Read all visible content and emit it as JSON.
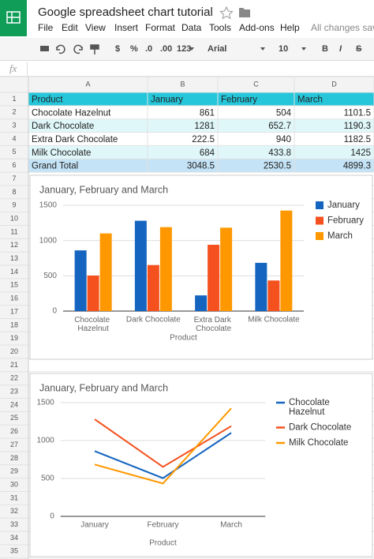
{
  "app": {
    "title": "Google spreadsheet chart tutorial",
    "menu": [
      "File",
      "Edit",
      "View",
      "Insert",
      "Format",
      "Data",
      "Tools",
      "Add-ons",
      "Help"
    ],
    "status": "All changes save",
    "toolbar": [
      "$",
      "%",
      ".0",
      ".00",
      "123",
      "Arial",
      "10",
      "B",
      "I",
      "S"
    ],
    "formula_label": "fx"
  },
  "sheet": {
    "columns": [
      "A",
      "B",
      "C",
      "D"
    ],
    "row_numbers": [
      1,
      2,
      3,
      4,
      5,
      6,
      7,
      8,
      9,
      10,
      11,
      12,
      13,
      14,
      15,
      16,
      17,
      18,
      19,
      20,
      21,
      22,
      23,
      24,
      25,
      26,
      27,
      28,
      29,
      30,
      31,
      32,
      33,
      34,
      35
    ],
    "cells": [
      [
        "Product",
        "January",
        "February",
        "March"
      ],
      [
        "Chocolate Hazelnut",
        861,
        504,
        1101.5
      ],
      [
        "Dark Chocolate",
        1281,
        652.7,
        1190.3
      ],
      [
        "Extra Dark Chocolate",
        222.5,
        940,
        1182.5
      ],
      [
        "Milk Chocolate",
        684,
        433.8,
        1425
      ],
      [
        "Grand Total",
        3048.5,
        2530.5,
        4899.3
      ]
    ]
  },
  "chart_data": [
    {
      "type": "bar",
      "title": "January, February and March",
      "x_label": "Product",
      "categories": [
        "Chocolate Hazelnut",
        "Dark Chocolate",
        "Extra Dark Chocolate",
        "Milk Chocolate"
      ],
      "series": [
        {
          "name": "January",
          "color": "#1565c0",
          "values": [
            861,
            1281,
            222.5,
            684
          ]
        },
        {
          "name": "February",
          "color": "#f4511e",
          "values": [
            504,
            652.7,
            940,
            433.8
          ]
        },
        {
          "name": "March",
          "color": "#ff9800",
          "values": [
            1101.5,
            1190.3,
            1182.5,
            1425
          ]
        }
      ],
      "ylim": [
        0,
        1500
      ],
      "yticks": [
        0,
        500,
        1000,
        1500
      ],
      "grid": true,
      "legend": "right"
    },
    {
      "type": "line",
      "title": "January, February and March",
      "x_label": "Product",
      "categories": [
        "January",
        "February",
        "March"
      ],
      "series": [
        {
          "name": "Chocolate Hazelnut",
          "color": "#1565c0",
          "values": [
            861,
            504,
            1101.5
          ]
        },
        {
          "name": "Dark Chocolate",
          "color": "#f4511e",
          "values": [
            1281,
            652.7,
            1190.3
          ]
        },
        {
          "name": "Milk Chocolate",
          "color": "#ff9800",
          "values": [
            684,
            433.8,
            1425
          ]
        }
      ],
      "ylim": [
        0,
        1500
      ],
      "yticks": [
        0,
        500,
        1000,
        1500
      ],
      "grid": true,
      "legend": "right"
    }
  ]
}
